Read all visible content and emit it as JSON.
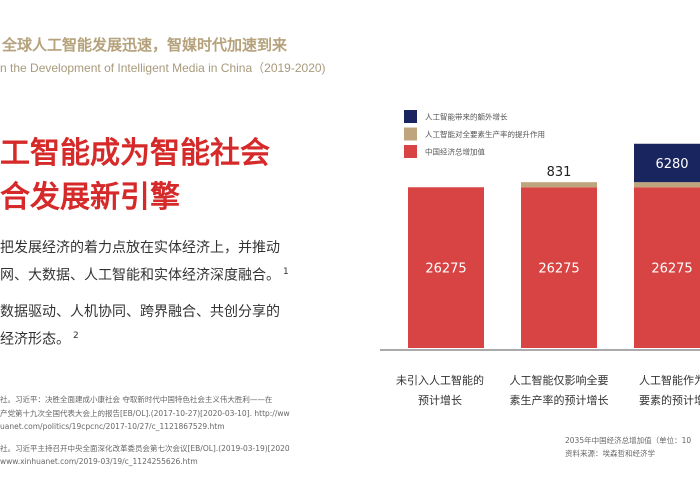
{
  "header": {
    "title_cn": "全球人工智能发展迅速，智媒时代加速到来",
    "title_en": "n the Development of Intelligent Media in China（2019-2020)"
  },
  "headline": {
    "line1": "工智能成为智能社会",
    "line2": "合发展新引擎"
  },
  "body": {
    "para1_line1": "把发展经济的着力点放在实体经济上，并推动",
    "para1_line2": "网、大数据、人工智能和实体经济深度融合。",
    "para1_sup": "1",
    "para2_line1": "数据驱动、人机协同、跨界融合、共创分享的",
    "para2_line2": "经济形态。",
    "para2_sup": "2"
  },
  "references": [
    "社。习近平：决胜全面建成小康社会 夺取新时代中国特色社会主义伟大胜利——在",
    "产党第十九次全国代表大会上的报告[EB/OL].(2017-10-27)[2020-03-10]. http://ww",
    "uanet.com/politics/19cpcnc/2017-10/27/c_1121867529.htm",
    "社。习近平主持召开中央全面深化改革委员会第七次会议[EB/OL].(2019-03-19)[2020",
    "www.xinhuanet.com/2019-03/19/c_1124255626.htm"
  ],
  "source": {
    "line1": "2035年中国经济总增加值（单位：10",
    "line2": "资料来源：埃森哲和经济学"
  },
  "colors": {
    "red": "#d84444",
    "tan": "#bfa57e",
    "navy": "#18255e",
    "headline_red": "#d62a2a",
    "header_gold": "#b5a27c"
  },
  "chart_data": {
    "type": "bar",
    "stacked": true,
    "categories": [
      [
        "未引入人工智能的",
        "预计增长"
      ],
      [
        "人工智能仅影响全要",
        "素生产率的预计增长"
      ],
      [
        "人工智能作为",
        "要素的预计增"
      ]
    ],
    "series": [
      {
        "name": "中国经济总增加值",
        "color": "#d84444",
        "values": [
          26275,
          26275,
          26275
        ]
      },
      {
        "name": "人工智能对全要素生产率的提升作用",
        "color": "#bfa57e",
        "values": [
          0,
          831,
          831
        ]
      },
      {
        "name": "人工智能带来的额外增长",
        "color": "#18255e",
        "values": [
          0,
          0,
          6280
        ]
      }
    ],
    "data_labels": [
      [
        "26275",
        "26275",
        "26275"
      ],
      [
        "",
        "831",
        ""
      ],
      [
        "",
        "",
        "6280"
      ]
    ],
    "legend": [
      "人工智能带来的额外增长",
      "人工智能对全要素生产率的提升作用",
      "中国经济总增加值"
    ],
    "legend_position": "top-left",
    "ylim": [
      0,
      34000
    ],
    "grid": false
  }
}
